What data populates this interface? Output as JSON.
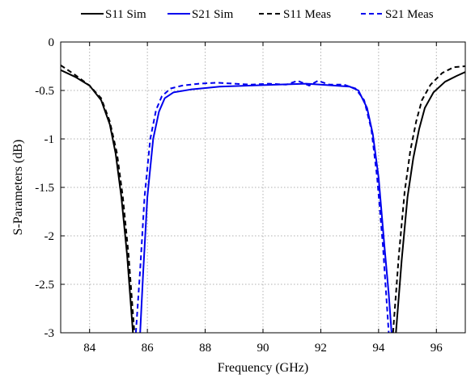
{
  "chart_data": {
    "type": "line",
    "title": "",
    "xlabel": "Frequency (GHz)",
    "ylabel": "S-Parameters (dB)",
    "xlim": [
      83,
      97
    ],
    "ylim": [
      -3,
      0
    ],
    "xticks": [
      84,
      86,
      88,
      90,
      92,
      94,
      96
    ],
    "yticks": [
      0,
      -0.5,
      -1,
      -1.5,
      -2,
      -2.5,
      -3
    ],
    "xtick_labels": [
      "84",
      "86",
      "88",
      "90",
      "92",
      "94",
      "96"
    ],
    "ytick_labels": [
      "0",
      "-0.5",
      "-1",
      "-1.5",
      "-2",
      "-2.5",
      "-3"
    ],
    "grid": true,
    "legend_position": "top",
    "series": [
      {
        "name": "S11 Sim",
        "color": "#000000",
        "dash": "solid",
        "segments": [
          [
            [
              83.0,
              -0.29
            ],
            [
              83.5,
              -0.36
            ],
            [
              84.0,
              -0.45
            ],
            [
              84.4,
              -0.6
            ],
            [
              84.7,
              -0.85
            ],
            [
              84.9,
              -1.15
            ],
            [
              85.1,
              -1.6
            ],
            [
              85.3,
              -2.2
            ],
            [
              85.5,
              -3.0
            ]
          ],
          [
            [
              94.6,
              -3.0
            ],
            [
              94.8,
              -2.25
            ],
            [
              95.0,
              -1.6
            ],
            [
              95.2,
              -1.2
            ],
            [
              95.4,
              -0.9
            ],
            [
              95.6,
              -0.68
            ],
            [
              95.9,
              -0.52
            ],
            [
              96.3,
              -0.41
            ],
            [
              96.7,
              -0.35
            ],
            [
              97.0,
              -0.31
            ]
          ]
        ]
      },
      {
        "name": "S21 Sim",
        "color": "#0000ee",
        "dash": "solid",
        "segments": [
          [
            [
              85.75,
              -3.0
            ],
            [
              85.85,
              -2.4
            ],
            [
              86.0,
              -1.6
            ],
            [
              86.2,
              -1.0
            ],
            [
              86.4,
              -0.72
            ],
            [
              86.6,
              -0.58
            ],
            [
              86.9,
              -0.52
            ],
            [
              87.5,
              -0.49
            ],
            [
              88.5,
              -0.46
            ],
            [
              89.5,
              -0.45
            ],
            [
              90.5,
              -0.44
            ],
            [
              91.5,
              -0.43
            ],
            [
              92.5,
              -0.45
            ],
            [
              93.0,
              -0.46
            ],
            [
              93.3,
              -0.5
            ],
            [
              93.6,
              -0.68
            ],
            [
              93.8,
              -0.95
            ],
            [
              94.0,
              -1.4
            ],
            [
              94.2,
              -2.1
            ],
            [
              94.35,
              -2.6
            ],
            [
              94.45,
              -3.0
            ]
          ]
        ]
      },
      {
        "name": "S11 Meas",
        "color": "#000000",
        "dash": "dashed",
        "segments": [
          [
            [
              83.0,
              -0.24
            ],
            [
              83.5,
              -0.34
            ],
            [
              84.0,
              -0.45
            ],
            [
              84.4,
              -0.58
            ],
            [
              84.7,
              -0.82
            ],
            [
              84.95,
              -1.15
            ],
            [
              85.15,
              -1.6
            ],
            [
              85.35,
              -2.2
            ],
            [
              85.55,
              -3.0
            ]
          ],
          [
            [
              94.5,
              -3.0
            ],
            [
              94.7,
              -2.2
            ],
            [
              94.9,
              -1.55
            ],
            [
              95.1,
              -1.12
            ],
            [
              95.3,
              -0.82
            ],
            [
              95.5,
              -0.6
            ],
            [
              95.8,
              -0.44
            ],
            [
              96.2,
              -0.32
            ],
            [
              96.6,
              -0.26
            ],
            [
              97.0,
              -0.25
            ]
          ]
        ]
      },
      {
        "name": "S21 Meas",
        "color": "#0000ee",
        "dash": "dashed",
        "segments": [
          [
            [
              85.6,
              -3.0
            ],
            [
              85.75,
              -2.35
            ],
            [
              85.9,
              -1.6
            ],
            [
              86.1,
              -1.0
            ],
            [
              86.3,
              -0.7
            ],
            [
              86.5,
              -0.56
            ],
            [
              86.8,
              -0.48
            ],
            [
              87.2,
              -0.45
            ],
            [
              87.8,
              -0.43
            ],
            [
              88.4,
              -0.42
            ],
            [
              89.0,
              -0.43
            ],
            [
              89.6,
              -0.44
            ],
            [
              90.2,
              -0.43
            ],
            [
              90.8,
              -0.44
            ],
            [
              91.2,
              -0.4
            ],
            [
              91.6,
              -0.45
            ],
            [
              91.9,
              -0.4
            ],
            [
              92.3,
              -0.44
            ],
            [
              92.8,
              -0.44
            ],
            [
              93.2,
              -0.48
            ],
            [
              93.5,
              -0.6
            ],
            [
              93.75,
              -0.9
            ],
            [
              93.95,
              -1.4
            ],
            [
              94.15,
              -2.1
            ],
            [
              94.35,
              -3.0
            ]
          ]
        ]
      }
    ]
  }
}
